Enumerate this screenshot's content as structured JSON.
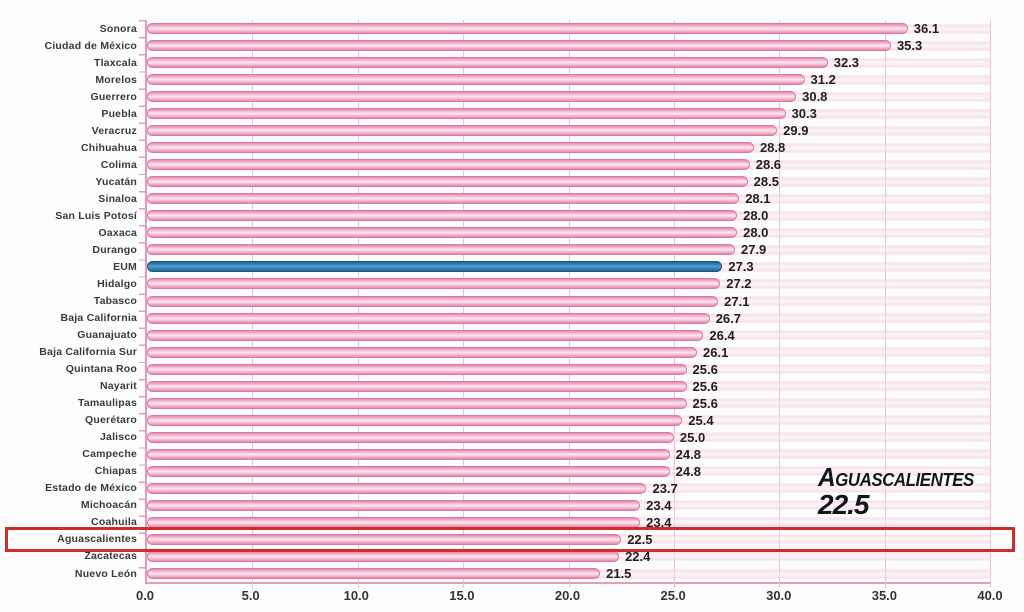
{
  "chart_data": {
    "type": "bar",
    "orientation": "horizontal",
    "title": "",
    "xlabel": "",
    "ylabel": "",
    "xlim": [
      0,
      40
    ],
    "grid": true,
    "x_ticks": [
      "0.0",
      "5.0",
      "10.0",
      "15.0",
      "20.0",
      "25.0",
      "30.0",
      "35.0",
      "40.0"
    ],
    "bars": [
      {
        "label": "Sonora",
        "value": 36.1,
        "display": "36.1"
      },
      {
        "label": "Ciudad de México",
        "value": 35.3,
        "display": "35.3"
      },
      {
        "label": "Tlaxcala",
        "value": 32.3,
        "display": "32.3"
      },
      {
        "label": "Morelos",
        "value": 31.2,
        "display": "31.2"
      },
      {
        "label": "Guerrero",
        "value": 30.8,
        "display": "30.8"
      },
      {
        "label": "Puebla",
        "value": 30.3,
        "display": "30.3"
      },
      {
        "label": "Veracruz",
        "value": 29.9,
        "display": "29.9"
      },
      {
        "label": "Chihuahua",
        "value": 28.8,
        "display": "28.8"
      },
      {
        "label": "Colima",
        "value": 28.6,
        "display": "28.6"
      },
      {
        "label": "Yucatán",
        "value": 28.5,
        "display": "28.5"
      },
      {
        "label": "Sinaloa",
        "value": 28.1,
        "display": "28.1"
      },
      {
        "label": "San Luis Potosí",
        "value": 28.0,
        "display": "28.0"
      },
      {
        "label": "Oaxaca",
        "value": 28.0,
        "display": "28.0"
      },
      {
        "label": "Durango",
        "value": 27.9,
        "display": "27.9"
      },
      {
        "label": "EUM",
        "value": 27.3,
        "display": "27.3",
        "series": "eum"
      },
      {
        "label": "Hidalgo",
        "value": 27.2,
        "display": "27.2"
      },
      {
        "label": "Tabasco",
        "value": 27.1,
        "display": "27.1"
      },
      {
        "label": "Baja California",
        "value": 26.7,
        "display": "26.7"
      },
      {
        "label": "Guanajuato",
        "value": 26.4,
        "display": "26.4"
      },
      {
        "label": "Baja California Sur",
        "value": 26.1,
        "display": "26.1"
      },
      {
        "label": "Quintana Roo",
        "value": 25.6,
        "display": "25.6"
      },
      {
        "label": "Nayarit",
        "value": 25.6,
        "display": "25.6"
      },
      {
        "label": "Tamaulipas",
        "value": 25.6,
        "display": "25.6"
      },
      {
        "label": "Querétaro",
        "value": 25.4,
        "display": "25.4"
      },
      {
        "label": "Jalisco",
        "value": 25.0,
        "display": "25.0"
      },
      {
        "label": "Campeche",
        "value": 24.8,
        "display": "24.8"
      },
      {
        "label": "Chiapas",
        "value": 24.8,
        "display": "24.8"
      },
      {
        "label": "Estado de México",
        "value": 23.7,
        "display": "23.7"
      },
      {
        "label": "Michoacán",
        "value": 23.4,
        "display": "23.4"
      },
      {
        "label": "Coahuila",
        "value": 23.4,
        "display": "23.4"
      },
      {
        "label": "Aguascalientes",
        "value": 22.5,
        "display": "22.5",
        "boxed": true
      },
      {
        "label": "Zacatecas",
        "value": 22.4,
        "display": "22.4"
      },
      {
        "label": "Nuevo León",
        "value": 21.5,
        "display": "21.5"
      }
    ],
    "annotation": {
      "title": "Aguascalientes",
      "value": "22.5"
    },
    "colors": {
      "bar_fill": "#f6c9db",
      "bar_edge": "#dd79a4",
      "eum_fill": "#3f89bf",
      "eum_edge": "#1b577f",
      "gridline": "#f2bed3",
      "axis": "#e59cbb",
      "highlight_box": "#d22b2b",
      "annotation_text": "#15151e"
    },
    "legend": null
  }
}
